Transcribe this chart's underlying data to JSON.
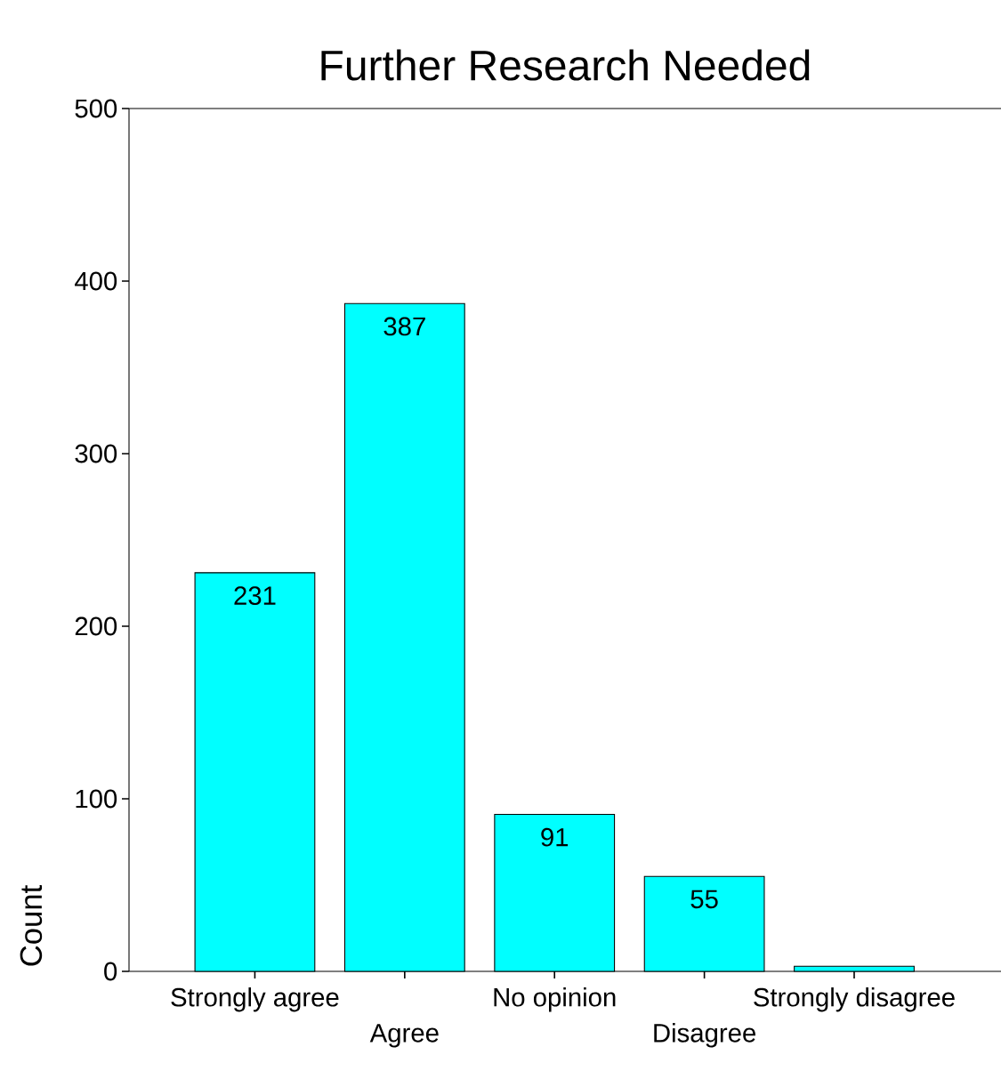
{
  "chart_data": {
    "type": "bar",
    "title": "Further Research Needed",
    "ylabel": "Count",
    "categories": [
      "Strongly agree",
      "Agree",
      "No opinion",
      "Disagree",
      "Strongly disagree"
    ],
    "values": [
      231,
      387,
      91,
      55,
      3
    ],
    "value_labels": [
      "231",
      "387",
      "91",
      "55",
      null
    ],
    "color": "#00ffff",
    "ylim": [
      0,
      500
    ],
    "yticks": [
      0,
      100,
      200,
      300,
      400,
      500
    ]
  }
}
